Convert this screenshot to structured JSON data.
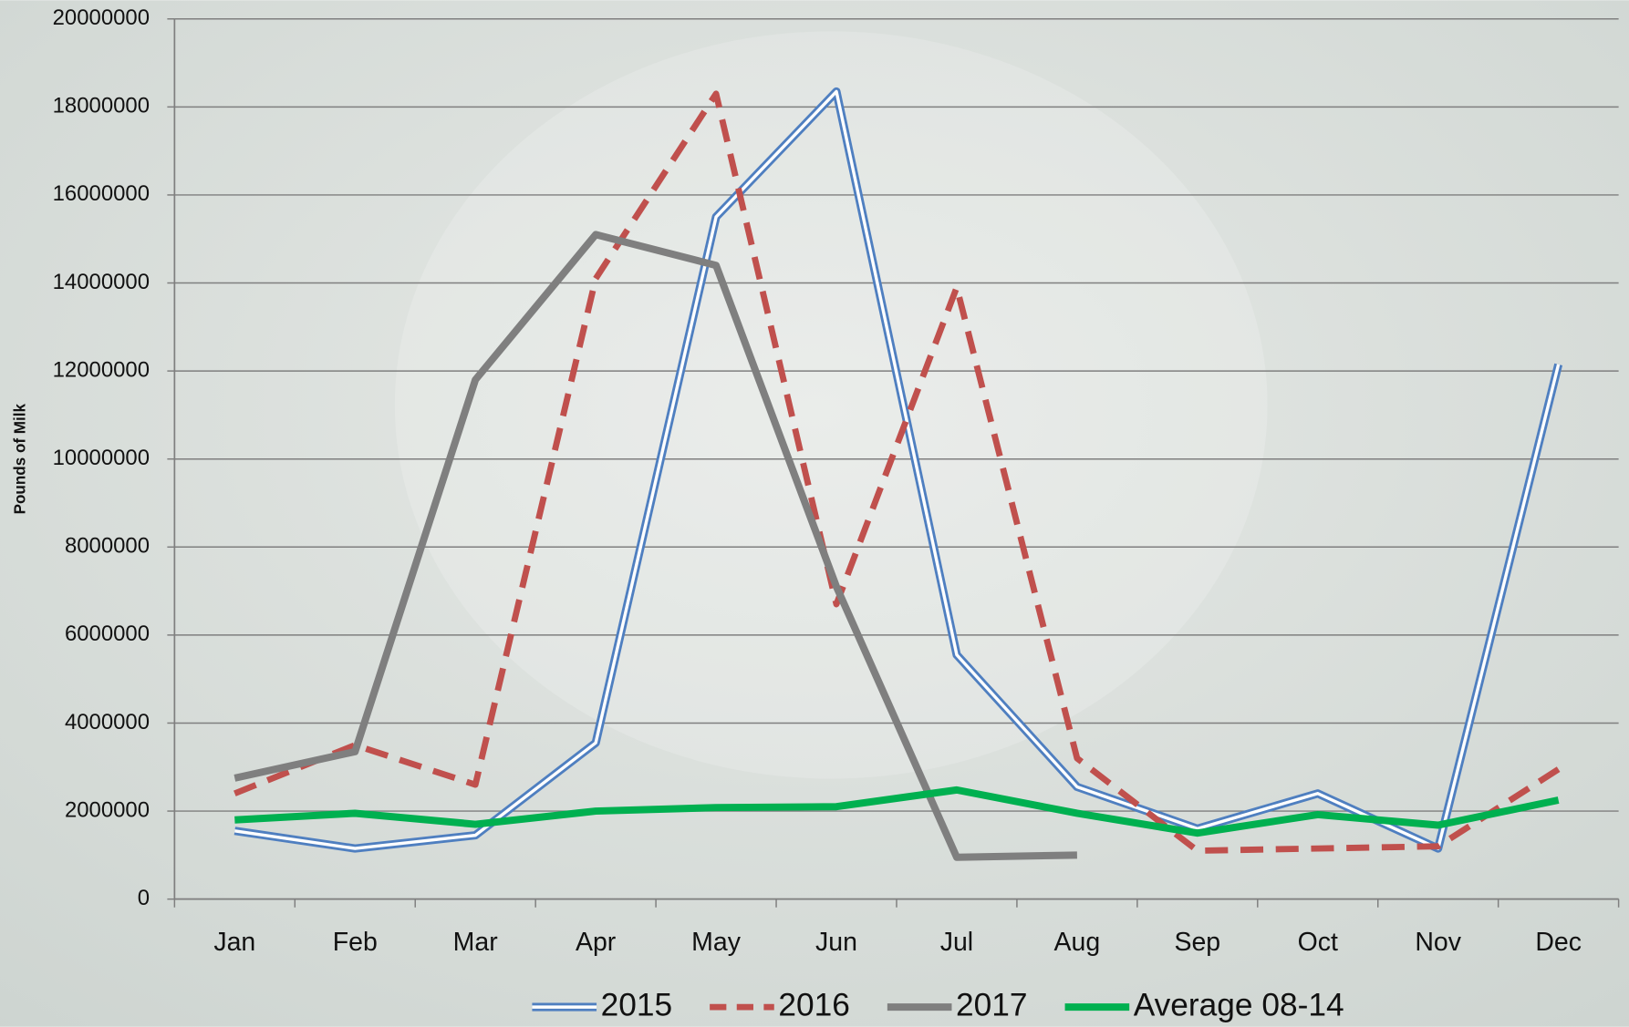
{
  "chart_data": {
    "type": "line",
    "y_label": "Pounds of Milk",
    "categories": [
      "Jan",
      "Feb",
      "Mar",
      "Apr",
      "May",
      "Jun",
      "Jul",
      "Aug",
      "Sep",
      "Oct",
      "Nov",
      "Dec"
    ],
    "series": [
      {
        "name": "2015",
        "color": "#4f7fc0",
        "double": true,
        "values": [
          1550000,
          1150000,
          1450000,
          3550000,
          15500000,
          18350000,
          5550000,
          2550000,
          1600000,
          2400000,
          1150000,
          12150000
        ]
      },
      {
        "name": "2016",
        "color": "#c0504d",
        "dash": true,
        "values": [
          2400000,
          3500000,
          2600000,
          14100000,
          18300000,
          6700000,
          13900000,
          3200000,
          1100000,
          1150000,
          1200000,
          2950000
        ]
      },
      {
        "name": "2017",
        "color": "#7f7f7f",
        "values": [
          2750000,
          3350000,
          11800000,
          15100000,
          14400000,
          7100000,
          950000,
          1000000,
          null,
          null,
          null,
          null
        ]
      },
      {
        "name": "Average 08-14",
        "color": "#00b050",
        "values": [
          1800000,
          1950000,
          1700000,
          2000000,
          2080000,
          2100000,
          2480000,
          1950000,
          1500000,
          1920000,
          1680000,
          2250000
        ]
      }
    ],
    "ylim": [
      0,
      20000000
    ],
    "yticks": [
      0,
      2000000,
      4000000,
      6000000,
      8000000,
      10000000,
      12000000,
      14000000,
      16000000,
      18000000,
      20000000
    ],
    "grid": true,
    "legend": "bottom"
  }
}
